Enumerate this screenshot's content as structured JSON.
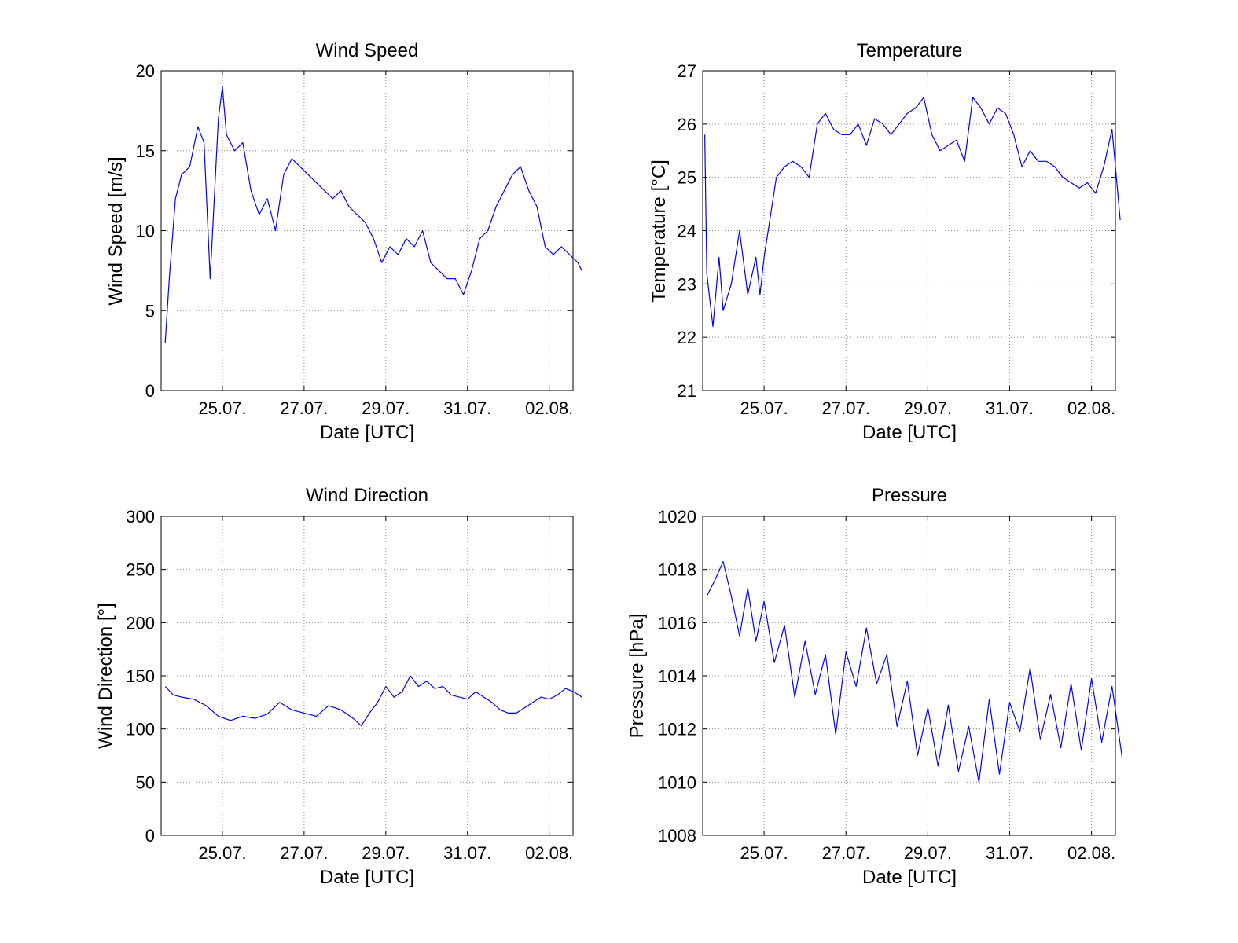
{
  "figure": {
    "background": "#ffffff",
    "line_color": "#0000ff",
    "grid_color": "#8c8c8c"
  },
  "chart_data": [
    {
      "type": "line",
      "title": "Wind Speed",
      "xlabel": "Date [UTC]",
      "ylabel": "Wind Speed [m/s]",
      "ylim": [
        0,
        20
      ],
      "yticks": [
        0,
        5,
        10,
        15,
        20
      ],
      "xlim": [
        "2010-07-23 12:00",
        "2010-08-02 14:00"
      ],
      "xticks": [
        "25.07.",
        "27.07.",
        "29.07.",
        "31.07.",
        "02.08."
      ],
      "grid": true,
      "legend": "none",
      "series": [
        {
          "x_unit": "day of July (UTC)",
          "x": [
            23.6,
            23.7,
            23.85,
            24.0,
            24.2,
            24.4,
            24.55,
            24.7,
            24.9,
            25.0,
            25.1,
            25.3,
            25.5,
            25.7,
            25.9,
            26.1,
            26.3,
            26.5,
            26.7,
            26.9,
            27.1,
            27.3,
            27.5,
            27.7,
            27.9,
            28.1,
            28.3,
            28.5,
            28.7,
            28.9,
            29.1,
            29.3,
            29.5,
            29.7,
            29.9,
            30.1,
            30.3,
            30.5,
            30.7,
            30.9,
            31.1,
            31.3,
            31.5,
            31.7,
            31.9,
            32.1,
            32.3,
            32.5,
            32.7,
            32.9,
            33.1,
            33.3,
            33.5,
            33.7,
            33.8
          ],
          "y": [
            3,
            7,
            12,
            13.5,
            14,
            16.5,
            15.5,
            7,
            17,
            19,
            16,
            15,
            15.5,
            12.5,
            11,
            12,
            10,
            13.5,
            14.5,
            14,
            13.5,
            13,
            12.5,
            12,
            12.5,
            11.5,
            11,
            10.5,
            9.5,
            8,
            9,
            8.5,
            9.5,
            9,
            10,
            8,
            7.5,
            7,
            7,
            6,
            7.5,
            9.5,
            10,
            11.5,
            12.5,
            13.5,
            14,
            12.5,
            11.5,
            9,
            8.5,
            9,
            8.5,
            8,
            7.5
          ]
        }
      ]
    },
    {
      "type": "line",
      "title": "Temperature",
      "xlabel": "Date [UTC]",
      "ylabel": "Temperature [°C]",
      "ylim": [
        21,
        27
      ],
      "yticks": [
        21,
        22,
        23,
        24,
        25,
        26,
        27
      ],
      "xlim": [
        "2010-07-23 12:00",
        "2010-08-02 14:00"
      ],
      "xticks": [
        "25.07.",
        "27.07.",
        "29.07.",
        "31.07.",
        "02.08."
      ],
      "grid": true,
      "legend": "none",
      "series": [
        {
          "x_unit": "day of July (UTC)",
          "x": [
            23.55,
            23.6,
            23.75,
            23.9,
            24.0,
            24.2,
            24.4,
            24.6,
            24.8,
            24.9,
            25.0,
            25.1,
            25.3,
            25.5,
            25.7,
            25.9,
            26.1,
            26.3,
            26.5,
            26.7,
            26.9,
            27.1,
            27.3,
            27.5,
            27.7,
            27.9,
            28.1,
            28.3,
            28.5,
            28.7,
            28.9,
            29.1,
            29.3,
            29.5,
            29.7,
            29.9,
            30.1,
            30.3,
            30.5,
            30.7,
            30.9,
            31.0,
            31.1,
            31.3,
            31.5,
            31.7,
            31.9,
            32.1,
            32.3,
            32.5,
            32.7,
            32.9,
            33.1,
            33.3,
            33.5,
            33.7
          ],
          "y": [
            25.8,
            23.2,
            22.2,
            23.5,
            22.5,
            23.0,
            24.0,
            22.8,
            23.5,
            22.8,
            23.5,
            24.0,
            25.0,
            25.2,
            25.3,
            25.2,
            25.0,
            26.0,
            26.2,
            25.9,
            25.8,
            25.8,
            26.0,
            25.6,
            26.1,
            26.0,
            25.8,
            26.0,
            26.2,
            26.3,
            26.5,
            25.8,
            25.5,
            25.6,
            25.7,
            25.3,
            26.5,
            26.3,
            26.0,
            26.3,
            26.2,
            26.0,
            25.8,
            25.2,
            25.5,
            25.3,
            25.3,
            25.2,
            25.0,
            24.9,
            24.8,
            24.9,
            24.7,
            25.2,
            25.9,
            24.2
          ]
        }
      ]
    },
    {
      "type": "line",
      "title": "Wind Direction",
      "xlabel": "Date [UTC]",
      "ylabel": "Wind Direction [°]",
      "ylim": [
        0,
        300
      ],
      "yticks": [
        0,
        50,
        100,
        150,
        200,
        250,
        300
      ],
      "xlim": [
        "2010-07-23 12:00",
        "2010-08-02 14:00"
      ],
      "xticks": [
        "25.07.",
        "27.07.",
        "29.07.",
        "31.07.",
        "02.08."
      ],
      "grid": true,
      "legend": "none",
      "series": [
        {
          "x_unit": "day of July (UTC)",
          "x": [
            23.6,
            23.8,
            24.0,
            24.3,
            24.6,
            24.9,
            25.2,
            25.5,
            25.8,
            26.1,
            26.4,
            26.7,
            27.0,
            27.3,
            27.6,
            27.9,
            28.2,
            28.4,
            28.6,
            28.8,
            29.0,
            29.2,
            29.4,
            29.6,
            29.8,
            30.0,
            30.2,
            30.4,
            30.6,
            30.8,
            31.0,
            31.2,
            31.4,
            31.6,
            31.8,
            32.0,
            32.2,
            32.4,
            32.6,
            32.8,
            33.0,
            33.2,
            33.4,
            33.6,
            33.8
          ],
          "y": [
            140,
            132,
            130,
            128,
            122,
            112,
            108,
            112,
            110,
            114,
            125,
            118,
            115,
            112,
            122,
            118,
            110,
            103,
            115,
            125,
            140,
            130,
            135,
            150,
            140,
            145,
            138,
            140,
            132,
            130,
            128,
            135,
            130,
            125,
            118,
            115,
            115,
            120,
            125,
            130,
            128,
            132,
            138,
            135,
            130
          ]
        }
      ]
    },
    {
      "type": "line",
      "title": "Pressure",
      "xlabel": "Date [UTC]",
      "ylabel": "Pressure [hPa]",
      "ylim": [
        1008,
        1020
      ],
      "yticks": [
        1008,
        1010,
        1012,
        1014,
        1016,
        1018,
        1020
      ],
      "xlim": [
        "2010-07-23 12:00",
        "2010-08-02 14:00"
      ],
      "xticks": [
        "25.07.",
        "27.07.",
        "29.07.",
        "31.07.",
        "02.08."
      ],
      "grid": true,
      "legend": "none",
      "series": [
        {
          "x_unit": "day of July (UTC)",
          "x": [
            23.6,
            23.8,
            24.0,
            24.2,
            24.4,
            24.6,
            24.8,
            25.0,
            25.25,
            25.5,
            25.75,
            26.0,
            26.25,
            26.5,
            26.75,
            27.0,
            27.25,
            27.5,
            27.75,
            28.0,
            28.25,
            28.5,
            28.75,
            29.0,
            29.25,
            29.5,
            29.75,
            30.0,
            30.25,
            30.5,
            30.75,
            31.0,
            31.25,
            31.5,
            31.75,
            32.0,
            32.25,
            32.5,
            32.75,
            33.0,
            33.25,
            33.5,
            33.75
          ],
          "y": [
            1017.0,
            1017.6,
            1018.3,
            1017.0,
            1015.5,
            1017.3,
            1015.3,
            1016.8,
            1014.5,
            1015.9,
            1013.2,
            1015.3,
            1013.3,
            1014.8,
            1011.8,
            1014.9,
            1013.6,
            1015.8,
            1013.7,
            1014.8,
            1012.1,
            1013.8,
            1011.0,
            1012.8,
            1010.6,
            1012.9,
            1010.4,
            1012.1,
            1010.0,
            1013.1,
            1010.3,
            1013.0,
            1011.9,
            1014.3,
            1011.6,
            1013.3,
            1011.3,
            1013.7,
            1011.2,
            1013.9,
            1011.5,
            1013.6,
            1010.9
          ]
        }
      ]
    }
  ]
}
